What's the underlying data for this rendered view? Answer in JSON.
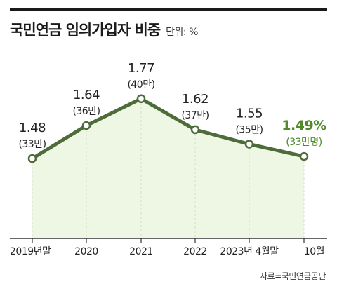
{
  "header": {
    "title": "국민연금 임의가입자 비중",
    "unit": "단위: %"
  },
  "source": "자료=국민연금공단",
  "colors": {
    "line": "#4e6b3a",
    "area": "#eef7e3",
    "highlight": "#4f8a2b",
    "gridline": "#d7dcd2"
  },
  "chart_data": {
    "type": "line",
    "categories": [
      "2019년말",
      "2020",
      "2021",
      "2022",
      "2023년 4월말",
      "10월"
    ],
    "series": [
      {
        "values": [
          1.48,
          1.64,
          1.77,
          1.62,
          1.55,
          1.49
        ],
        "data_labels": [
          "1.48",
          "1.64",
          "1.77",
          "1.62",
          "1.55",
          "1.49%"
        ],
        "sub_labels": [
          "(33만)",
          "(36만)",
          "(40만)",
          "(37만)",
          "(35만)",
          "(33만명)"
        ]
      }
    ],
    "highlight_index": 5,
    "title": "국민연금 임의가입자 비중",
    "ylabel": "",
    "xlabel": "",
    "ylim": [
      0,
      1.9
    ],
    "grid": "vertical-dashed"
  }
}
